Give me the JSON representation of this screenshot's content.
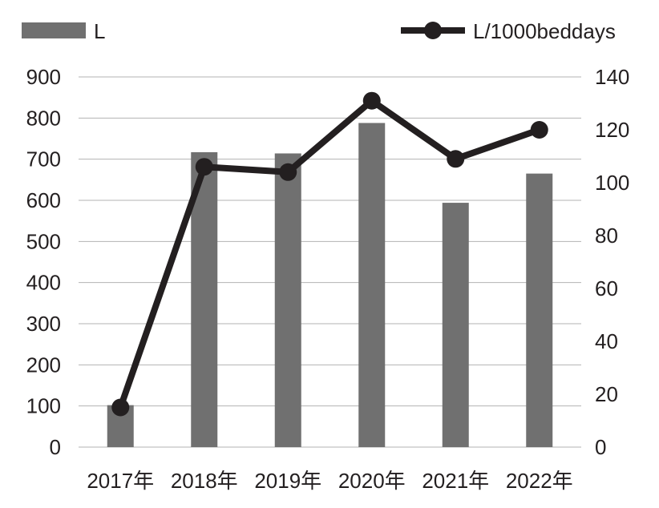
{
  "chart_data": {
    "type": "bar",
    "categories": [
      "2017年",
      "2018年",
      "2019年",
      "2020年",
      "2021年",
      "2022年"
    ],
    "series": [
      {
        "name": "L",
        "type": "bar",
        "axis": "left",
        "values": [
          102,
          717,
          714,
          788,
          594,
          665
        ]
      },
      {
        "name": "L/1000beddays",
        "type": "line",
        "axis": "right",
        "values": [
          15,
          106,
          104,
          131,
          109,
          120
        ]
      }
    ],
    "y_left": {
      "ylim": [
        0,
        900
      ],
      "ticks": [
        0,
        100,
        200,
        300,
        400,
        500,
        600,
        700,
        800,
        900
      ]
    },
    "y_right": {
      "ylim": [
        0,
        140
      ],
      "ticks": [
        0,
        20,
        40,
        60,
        80,
        100,
        120,
        140
      ]
    },
    "grid": true,
    "legend_placement": "top",
    "colors": {
      "bar": "#707070",
      "line": "#231f20",
      "grid": "#b3b3b3",
      "text": "#231f20"
    }
  }
}
